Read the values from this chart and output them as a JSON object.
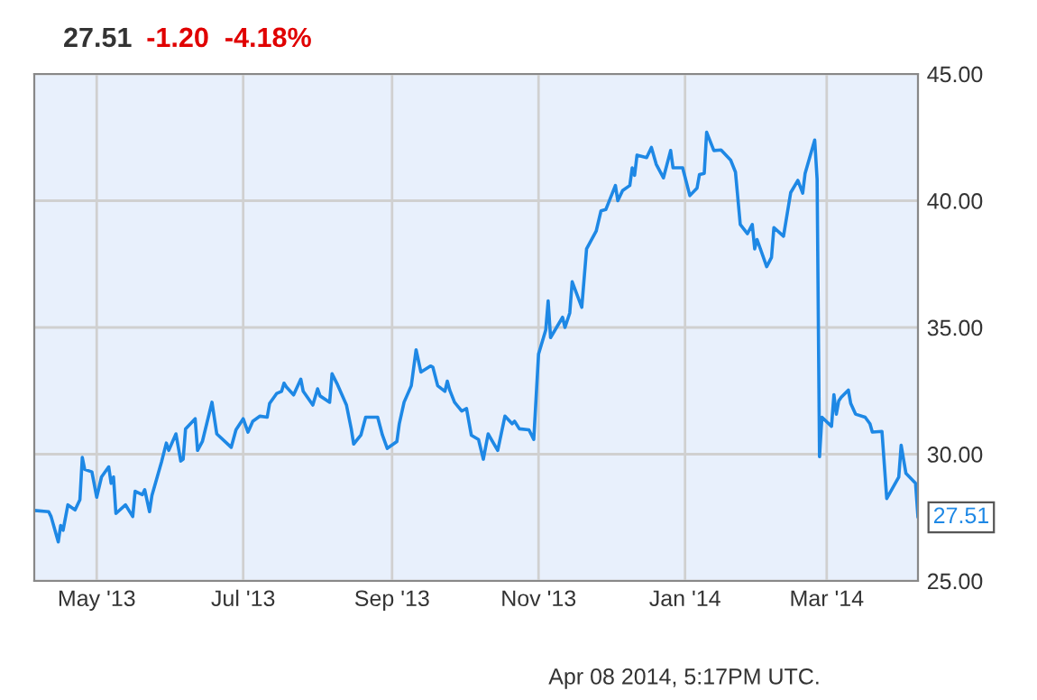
{
  "chart_data": {
    "type": "line",
    "title": "27.51",
    "subtitle": "-1.20  -4.18%",
    "x": [
      "2013-04-05",
      "2013-04-11",
      "2013-04-12",
      "2013-04-15",
      "2013-04-16",
      "2013-04-17",
      "2013-04-19",
      "2013-04-22",
      "2013-04-24",
      "2013-04-25",
      "2013-04-26",
      "2013-04-29",
      "2013-05-01",
      "2013-05-03",
      "2013-05-06",
      "2013-05-07",
      "2013-05-08",
      "2013-05-09",
      "2013-05-13",
      "2013-05-16",
      "2013-05-17",
      "2013-05-20",
      "2013-05-21",
      "2013-05-23",
      "2013-05-24",
      "2013-05-28",
      "2013-05-30",
      "2013-05-31",
      "2013-06-03",
      "2013-06-05",
      "2013-06-06",
      "2013-06-07",
      "2013-06-11",
      "2013-06-12",
      "2013-06-14",
      "2013-06-18",
      "2013-06-20",
      "2013-06-26",
      "2013-06-28",
      "2013-07-01",
      "2013-07-03",
      "2013-07-05",
      "2013-07-08",
      "2013-07-11",
      "2013-07-12",
      "2013-07-15",
      "2013-07-17",
      "2013-07-18",
      "2013-07-19",
      "2013-07-22",
      "2013-07-25",
      "2013-07-26",
      "2013-07-30",
      "2013-08-01",
      "2013-08-02",
      "2013-08-06",
      "2013-08-07",
      "2013-08-09",
      "2013-08-13",
      "2013-08-15",
      "2013-08-16",
      "2013-08-19",
      "2013-08-21",
      "2013-08-26",
      "2013-08-28",
      "2013-08-30",
      "2013-09-03",
      "2013-09-04",
      "2013-09-06",
      "2013-09-09",
      "2013-09-11",
      "2013-09-13",
      "2013-09-17",
      "2013-09-18",
      "2013-09-20",
      "2013-09-23",
      "2013-09-24",
      "2013-09-25",
      "2013-09-27",
      "2013-09-30",
      "2013-10-02",
      "2013-10-04",
      "2013-10-07",
      "2013-10-09",
      "2013-10-11",
      "2013-10-15",
      "2013-10-18",
      "2013-10-21",
      "2013-10-22",
      "2013-10-24",
      "2013-10-28",
      "2013-10-30",
      "2013-11-01",
      "2013-11-04",
      "2013-11-05",
      "2013-11-06",
      "2013-11-11",
      "2013-11-12",
      "2013-11-14",
      "2013-11-15",
      "2013-11-19",
      "2013-11-21",
      "2013-11-25",
      "2013-11-27",
      "2013-11-29",
      "2013-12-03",
      "2013-12-04",
      "2013-12-06",
      "2013-12-09",
      "2013-12-10",
      "2013-12-11",
      "2013-12-12",
      "2013-12-16",
      "2013-12-18",
      "2013-12-20",
      "2013-12-23",
      "2013-12-26",
      "2013-12-27",
      "2013-12-31",
      "2014-01-03",
      "2014-01-06",
      "2014-01-07",
      "2014-01-09",
      "2014-01-10",
      "2014-01-13",
      "2014-01-16",
      "2014-01-20",
      "2014-01-22",
      "2014-01-24",
      "2014-01-27",
      "2014-01-29",
      "2014-01-30",
      "2014-01-31",
      "2014-02-04",
      "2014-02-06",
      "2014-02-07",
      "2014-02-11",
      "2014-02-14",
      "2014-02-17",
      "2014-02-19",
      "2014-02-20",
      "2014-02-24",
      "2014-02-25",
      "2014-02-26",
      "2014-02-27",
      "2014-03-03",
      "2014-03-04",
      "2014-03-05",
      "2014-03-06",
      "2014-03-07",
      "2014-03-10",
      "2014-03-11",
      "2014-03-13",
      "2014-03-17",
      "2014-03-19",
      "2014-03-20",
      "2014-03-24",
      "2014-03-26",
      "2014-03-31",
      "2014-04-01",
      "2014-04-03",
      "2014-04-07",
      "2014-04-08"
    ],
    "series": [
      {
        "color": "#1e88e5",
        "values": [
          27.78,
          27.73,
          27.54,
          26.54,
          27.19,
          27.0,
          28.0,
          27.8,
          28.2,
          29.87,
          29.4,
          29.3,
          28.3,
          29.1,
          29.5,
          28.85,
          29.1,
          27.66,
          28.0,
          27.54,
          28.54,
          28.4,
          28.6,
          27.73,
          28.37,
          29.7,
          30.44,
          30.15,
          30.8,
          29.73,
          29.8,
          31.0,
          31.4,
          30.15,
          30.5,
          32.05,
          30.8,
          30.27,
          30.96,
          31.4,
          30.87,
          31.3,
          31.5,
          31.46,
          32.0,
          32.4,
          32.48,
          32.8,
          32.65,
          32.34,
          32.96,
          32.48,
          31.94,
          32.58,
          32.3,
          32.05,
          33.17,
          32.8,
          31.94,
          31.0,
          30.4,
          30.75,
          31.46,
          31.46,
          30.75,
          30.23,
          30.5,
          31.2,
          32.05,
          32.7,
          34.12,
          33.24,
          33.48,
          33.43,
          32.7,
          32.48,
          32.88,
          32.53,
          32.05,
          31.7,
          31.8,
          30.75,
          30.58,
          29.8,
          30.8,
          30.15,
          31.5,
          31.2,
          31.3,
          31.0,
          30.96,
          30.58,
          33.95,
          34.9,
          36.05,
          34.6,
          35.4,
          35.0,
          35.57,
          36.8,
          35.8,
          38.1,
          38.8,
          39.6,
          39.65,
          40.6,
          40.0,
          40.4,
          40.6,
          41.3,
          41.0,
          41.8,
          41.7,
          42.1,
          41.44,
          40.9,
          41.98,
          41.3,
          41.3,
          40.2,
          40.5,
          41.03,
          41.08,
          42.7,
          41.98,
          42.0,
          41.6,
          41.13,
          39.06,
          38.7,
          39.06,
          38.1,
          38.47,
          37.4,
          37.76,
          38.94,
          38.6,
          40.32,
          40.8,
          40.3,
          41.08,
          42.39,
          40.85,
          29.9,
          31.46,
          31.1,
          32.35,
          31.58,
          32.1,
          32.24,
          32.53,
          32.0,
          31.58,
          31.46,
          31.2,
          30.87,
          30.9,
          28.25,
          29.1,
          30.35,
          29.24,
          28.85,
          27.51
        ]
      }
    ],
    "xlim": [
      "2013-04-05",
      "2014-04-08"
    ],
    "xticks": [
      {
        "value": "2013-05-01",
        "label": "May '13"
      },
      {
        "value": "2013-07-01",
        "label": "Jul '13"
      },
      {
        "value": "2013-09-01",
        "label": "Sep '13"
      },
      {
        "value": "2013-11-01",
        "label": "Nov '13"
      },
      {
        "value": "2014-01-01",
        "label": "Jan '14"
      },
      {
        "value": "2014-03-01",
        "label": "Mar '14"
      }
    ],
    "ylim": [
      25,
      45
    ],
    "yticks": [
      {
        "value": 25,
        "label": "25.00"
      },
      {
        "value": 30,
        "label": "30.00"
      },
      {
        "value": 35,
        "label": "35.00"
      },
      {
        "value": 40,
        "label": "40.00"
      },
      {
        "value": 45,
        "label": "45.00"
      }
    ],
    "grid": true,
    "legend": false,
    "marker": "none",
    "line_style": "solid",
    "annotations": [
      {
        "text": "27.51",
        "x": "2014-04-08",
        "y": 27.51
      },
      "Apr 08 2014, 5:17PM UTC."
    ]
  }
}
